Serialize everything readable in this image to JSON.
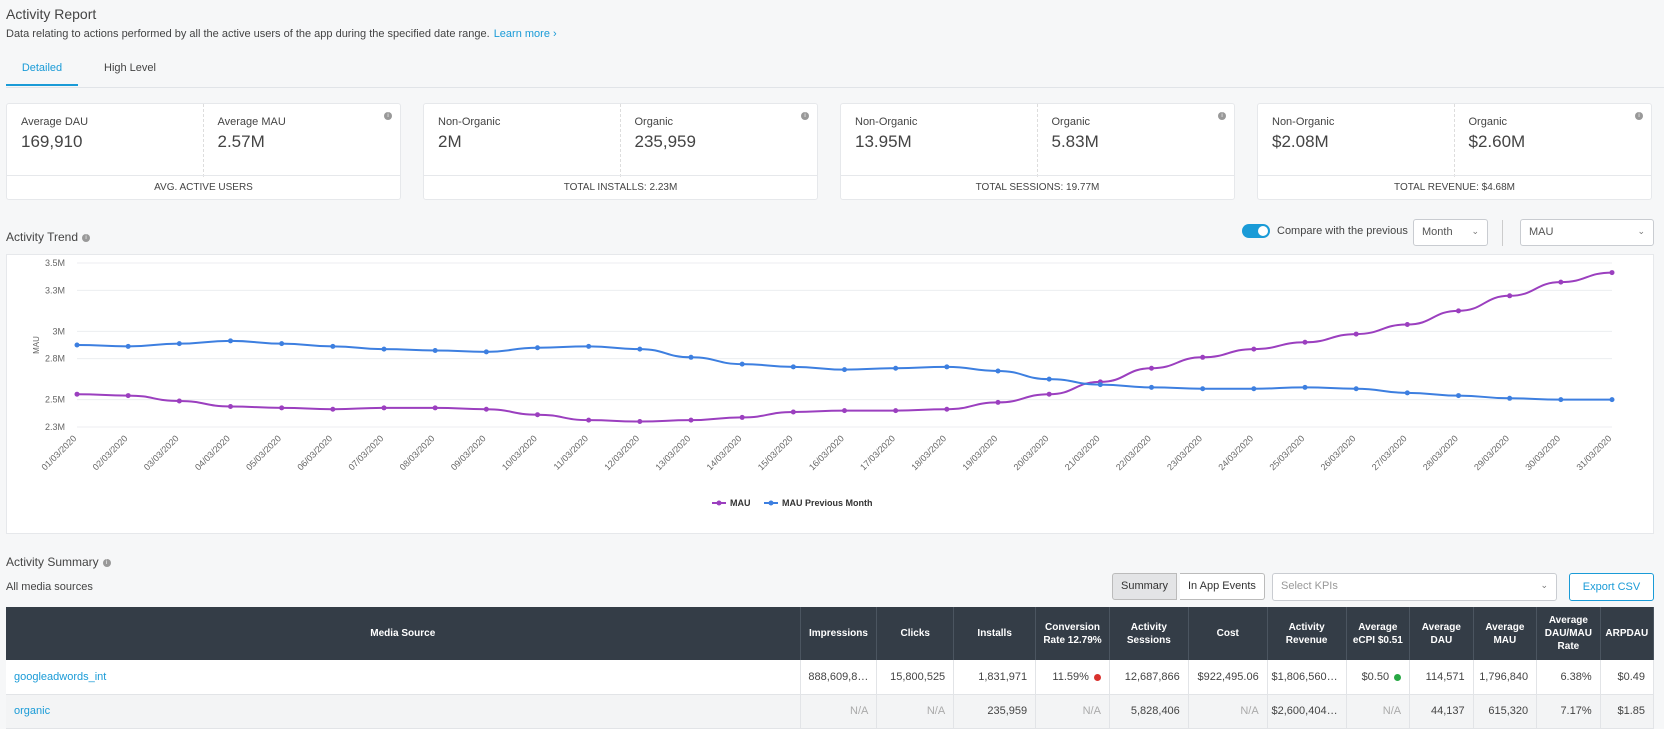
{
  "header": {
    "title": "Activity Report",
    "subtitle": "Data relating to actions performed by all the active users of the app during the specified date range.",
    "learn_more": "Learn more ›"
  },
  "tabs": [
    {
      "label": "Detailed"
    },
    {
      "label": "High Level"
    }
  ],
  "kpi_cards": [
    {
      "left_label": "Average DAU",
      "left_value": "169,910",
      "right_label": "Average MAU",
      "right_value": "2.57M",
      "footer": "AVG. ACTIVE USERS"
    },
    {
      "left_label": "Non-Organic",
      "left_value": "2M",
      "right_label": "Organic",
      "right_value": "235,959",
      "footer": "TOTAL INSTALLS: 2.23M"
    },
    {
      "left_label": "Non-Organic",
      "left_value": "13.95M",
      "right_label": "Organic",
      "right_value": "5.83M",
      "footer": "TOTAL SESSIONS: 19.77M"
    },
    {
      "left_label": "Non-Organic",
      "left_value": "$2.08M",
      "right_label": "Organic",
      "right_value": "$2.60M",
      "footer": "TOTAL REVENUE: $4.68M"
    }
  ],
  "trend": {
    "title": "Activity Trend",
    "compare_label": "Compare with the previous",
    "period_select": "Month",
    "metric_select": "MAU",
    "info_icon": "i"
  },
  "chart_data": {
    "type": "line",
    "ylabel": "MAU",
    "y_ticks": [
      "3.5M",
      "3.3M",
      "3M",
      "2.8M",
      "2.5M",
      "2.3M"
    ],
    "ylim": [
      2.3,
      3.5
    ],
    "x": [
      "01/03/2020",
      "02/03/2020",
      "03/03/2020",
      "04/03/2020",
      "05/03/2020",
      "06/03/2020",
      "07/03/2020",
      "08/03/2020",
      "09/03/2020",
      "10/03/2020",
      "11/03/2020",
      "12/03/2020",
      "13/03/2020",
      "14/03/2020",
      "15/03/2020",
      "16/03/2020",
      "17/03/2020",
      "18/03/2020",
      "19/03/2020",
      "20/03/2020",
      "21/03/2020",
      "22/03/2020",
      "23/03/2020",
      "24/03/2020",
      "25/03/2020",
      "26/03/2020",
      "27/03/2020",
      "28/03/2020",
      "29/03/2020",
      "30/03/2020",
      "31/03/2020"
    ],
    "series": [
      {
        "name": "MAU",
        "color": "#9b3fbf",
        "values": [
          2.54,
          2.53,
          2.49,
          2.45,
          2.44,
          2.43,
          2.44,
          2.44,
          2.43,
          2.39,
          2.35,
          2.34,
          2.35,
          2.37,
          2.41,
          2.42,
          2.42,
          2.43,
          2.48,
          2.54,
          2.63,
          2.73,
          2.81,
          2.87,
          2.92,
          2.98,
          3.05,
          3.15,
          3.26,
          3.36,
          3.43
        ]
      },
      {
        "name": "MAU Previous Month",
        "color": "#3d7fe0",
        "values": [
          2.9,
          2.89,
          2.91,
          2.93,
          2.91,
          2.89,
          2.87,
          2.86,
          2.85,
          2.88,
          2.89,
          2.87,
          2.81,
          2.76,
          2.74,
          2.72,
          2.73,
          2.74,
          2.71,
          2.65,
          2.61,
          2.59,
          2.58,
          2.58,
          2.59,
          2.58,
          2.55,
          2.53,
          2.51,
          2.5,
          2.5
        ]
      }
    ]
  },
  "summary": {
    "title": "Activity Summary",
    "scope": "All media sources",
    "seg_summary": "Summary",
    "seg_events": "In App Events",
    "kpi_placeholder": "Select KPIs",
    "export": "Export CSV"
  },
  "table": {
    "headers": [
      "Media Source",
      "Impressions",
      "Clicks",
      "Installs",
      "Conversion Rate 12.79%",
      "Activity Sessions",
      "Cost",
      "Activity Revenue",
      "Average eCPI $0.51",
      "Average DAU",
      "Average MAU",
      "Average DAU/MAU Rate",
      "ARPDAU"
    ],
    "rows": [
      {
        "source": "googleadwords_int",
        "impressions": "888,609,8…",
        "clicks": "15,800,525",
        "installs": "1,831,971",
        "conversion": "11.59%",
        "conversion_status": "#d9322e",
        "sessions": "12,687,866",
        "cost": "$922,495.06",
        "revenue": "$1,806,560…",
        "ecpi": "$0.50",
        "ecpi_status": "#27a844",
        "dau": "114,571",
        "mau": "1,796,840",
        "rate": "6.38%",
        "arpdau": "$0.49"
      },
      {
        "source": "organic",
        "impressions": "N/A",
        "clicks": "N/A",
        "installs": "235,959",
        "conversion": "N/A",
        "sessions": "5,828,406",
        "cost": "N/A",
        "revenue": "$2,600,404…",
        "ecpi": "N/A",
        "dau": "44,137",
        "mau": "615,320",
        "rate": "7.17%",
        "arpdau": "$1.85"
      }
    ]
  }
}
